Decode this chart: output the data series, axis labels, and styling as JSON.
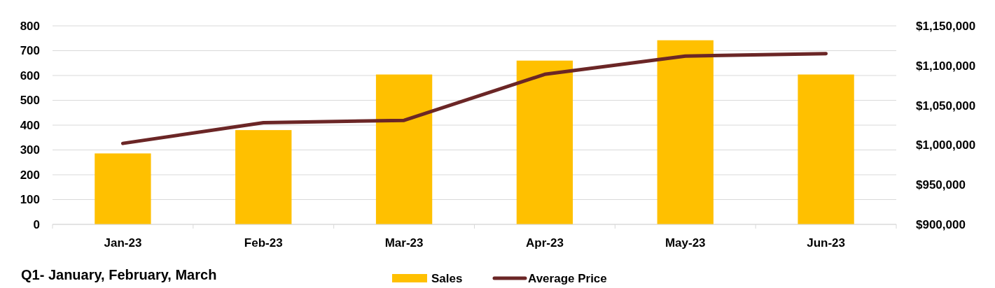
{
  "chart_data": {
    "type": "bar",
    "categories": [
      "Jan-23",
      "Feb-23",
      "Mar-23",
      "Apr-23",
      "May-23",
      "Jun-23"
    ],
    "series": [
      {
        "name": "Sales",
        "color": "#ffc000",
        "values": [
          286,
          380,
          604,
          660,
          742,
          604
        ]
      },
      {
        "name": "Average Price",
        "type": "line",
        "axis": "y2",
        "color": "#6b2626",
        "values": [
          1002000,
          1028000,
          1031000,
          1089000,
          1112000,
          1115000
        ]
      }
    ],
    "ylim": [
      0,
      800
    ],
    "yticks": [
      0,
      100,
      200,
      300,
      400,
      500,
      600,
      700,
      800
    ],
    "y2lim": [
      900000,
      1150000
    ],
    "y2ticks": [
      {
        "value": 900000,
        "label": "$900,000"
      },
      {
        "value": 950000,
        "label": "$950,000"
      },
      {
        "value": 1000000,
        "label": "$1,000,000"
      },
      {
        "value": 1050000,
        "label": "$1,050,000"
      },
      {
        "value": 1100000,
        "label": "$1,100,000"
      },
      {
        "value": 1150000,
        "label": "$1,150,000"
      }
    ],
    "grid": "y",
    "legend": "bottom",
    "marker": "none",
    "line_style": "solid",
    "annotations": [
      "Q1- January, February, March"
    ]
  }
}
